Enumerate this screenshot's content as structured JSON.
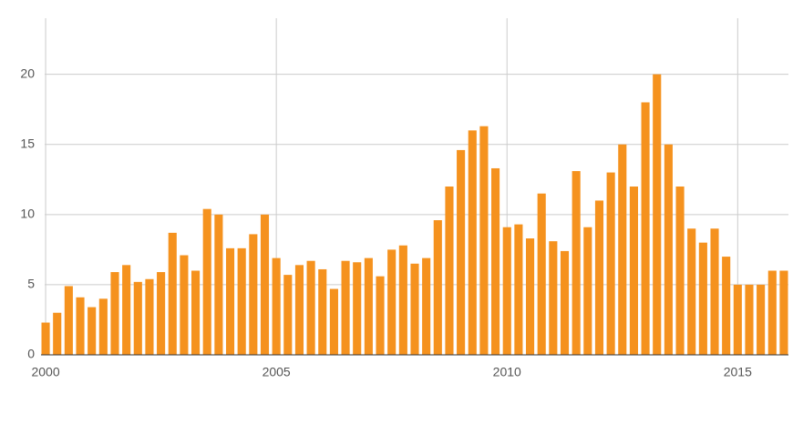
{
  "chart_data": {
    "type": "bar",
    "color": "#f5921e",
    "x": [
      2000,
      2000.25,
      2000.5,
      2000.75,
      2001,
      2001.25,
      2001.5,
      2001.75,
      2002,
      2002.25,
      2002.5,
      2002.75,
      2003,
      2003.25,
      2003.5,
      2003.75,
      2004,
      2004.25,
      2004.5,
      2004.75,
      2005,
      2005.25,
      2005.5,
      2005.75,
      2006,
      2006.25,
      2006.5,
      2006.75,
      2007,
      2007.25,
      2007.5,
      2007.75,
      2008,
      2008.25,
      2008.5,
      2008.75,
      2009,
      2009.25,
      2009.5,
      2009.75,
      2010,
      2010.25,
      2010.5,
      2010.75,
      2011,
      2011.25,
      2011.5,
      2011.75,
      2012,
      2012.25,
      2012.5,
      2012.75,
      2013,
      2013.25,
      2013.5,
      2013.75,
      2014,
      2014.25,
      2014.5,
      2014.75,
      2015,
      2015.25,
      2015.5,
      2015.75,
      2016
    ],
    "values": [
      2.3,
      3.0,
      4.9,
      4.1,
      3.4,
      4.0,
      5.9,
      6.4,
      5.2,
      5.4,
      5.9,
      8.7,
      7.1,
      6.0,
      10.4,
      10.0,
      7.6,
      7.6,
      8.6,
      10.0,
      6.9,
      5.7,
      6.4,
      6.7,
      6.1,
      4.7,
      6.7,
      6.6,
      6.9,
      5.6,
      7.5,
      7.8,
      6.5,
      6.9,
      9.6,
      12.0,
      14.6,
      16.0,
      16.3,
      13.3,
      9.1,
      9.3,
      8.3,
      11.5,
      8.1,
      7.4,
      13.1,
      9.1,
      11.0,
      13.0,
      15.0,
      12.0,
      18.0,
      20.0,
      15.0,
      12.0,
      9.0,
      8.0,
      9.0,
      7.0,
      5.0,
      5.0,
      5.0,
      6.0,
      6.0
    ],
    "xlim": [
      1999.9,
      2016.1
    ],
    "xticks": [
      2000,
      2005,
      2010,
      2015
    ],
    "ylim": [
      0,
      24
    ],
    "yticks": [
      0,
      5,
      10,
      15,
      20
    ],
    "grid": true
  }
}
